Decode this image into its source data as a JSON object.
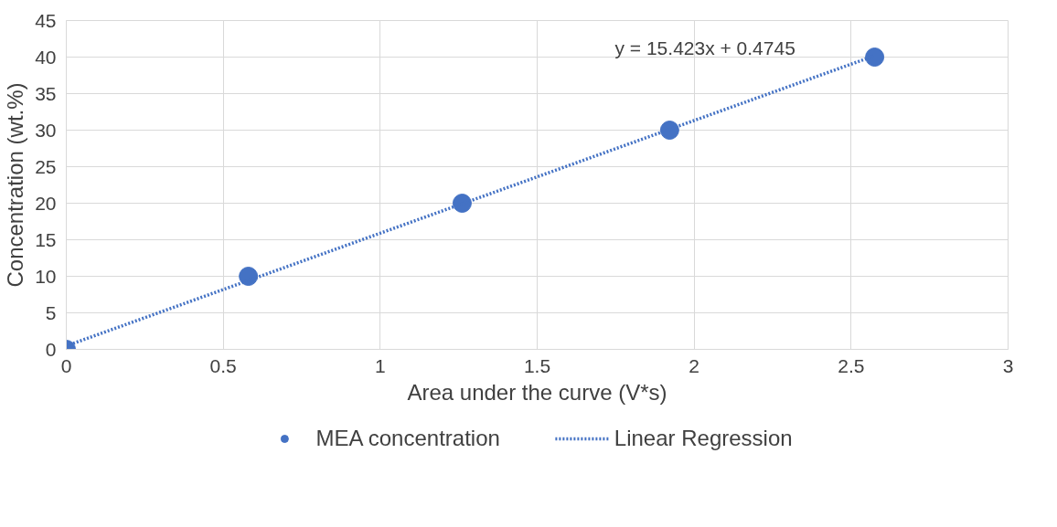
{
  "chart_data": {
    "type": "scatter",
    "xlabel": "Area under the curve (V*s)",
    "ylabel": "Concentration (wt.%)",
    "xlim": [
      0,
      3
    ],
    "xticks": [
      0,
      0.5,
      1,
      1.5,
      2,
      2.5,
      3
    ],
    "ylim": [
      0,
      45
    ],
    "yticks": [
      0,
      5,
      10,
      15,
      20,
      25,
      30,
      35,
      40,
      45
    ],
    "grid": true,
    "legend": "bottom",
    "marker": "circle",
    "series": [
      {
        "name": "MEA concentration",
        "color": "#4472c4",
        "x": [
          0,
          0.58,
          1.261,
          1.922,
          2.575
        ],
        "values": [
          0,
          10,
          20,
          30,
          40
        ]
      },
      {
        "name": "Linear Regression",
        "type": "line",
        "line_style": "dotted",
        "marker": "none",
        "color": "#4472c4",
        "x": [
          0,
          2.575
        ],
        "values": [
          0.4745,
          40.19
        ]
      }
    ],
    "annotations": [
      "y = 15.423x + 0.4745"
    ]
  }
}
